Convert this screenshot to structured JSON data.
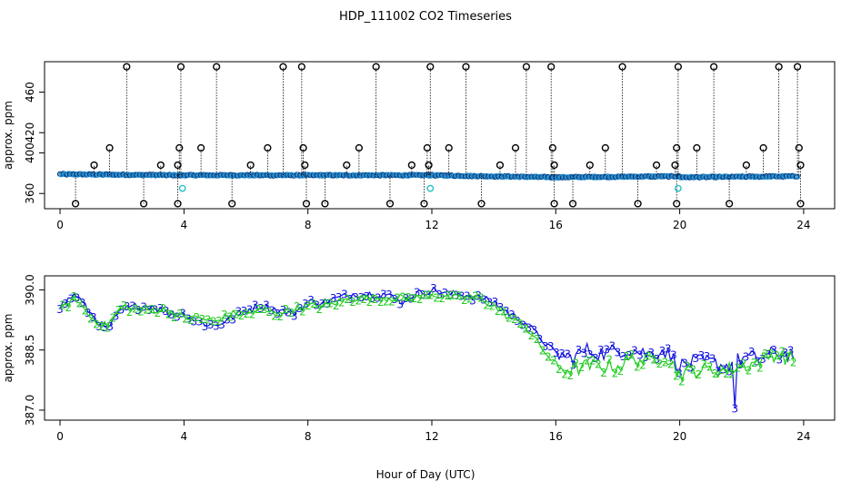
{
  "figure": {
    "title": "HDP_111002  CO2 Timeseries",
    "xlabel": "Hour of Day (UTC)"
  },
  "colors": {
    "axis": "#000000",
    "outlier_marker": "#000000",
    "main_series": "#1f8fd0",
    "main_marker_dark": "#0a2a6e",
    "flag_marker": "#22c0c8",
    "series_3": "#1010e0",
    "series_2": "#22cc22"
  },
  "chart_data": [
    {
      "type": "scatter",
      "title": "",
      "xlabel": "",
      "ylabel": "approx. ppm",
      "xlim": [
        -0.5,
        25
      ],
      "ylim": [
        345,
        490
      ],
      "xticks": [
        0,
        4,
        8,
        12,
        16,
        20,
        24
      ],
      "yticks": [
        360,
        400,
        420,
        460
      ],
      "grid": false,
      "series_breaks": [
        3.9,
        11.9,
        15.9,
        20.0
      ],
      "series": [
        {
          "x_start": 0.0,
          "x_end": 3.9,
          "y_start": 379,
          "y_end": 378
        },
        {
          "x_start": 3.9,
          "x_end": 11.9,
          "y_start": 378,
          "y_end": 378
        },
        {
          "x_start": 11.9,
          "x_end": 15.9,
          "y_start": 378,
          "y_end": 376
        },
        {
          "x_start": 15.9,
          "x_end": 20.0,
          "y_start": 376,
          "y_end": 377
        },
        {
          "x_start": 20.0,
          "x_end": 23.8,
          "y_start": 376,
          "y_end": 377
        }
      ],
      "flag_points": [
        [
          3.95,
          365
        ],
        [
          11.95,
          365
        ],
        [
          19.95,
          365
        ]
      ],
      "outliers_high": [
        2.15,
        3.9,
        5.05,
        7.2,
        7.8,
        10.2,
        11.95,
        13.1,
        15.05,
        15.85,
        18.15,
        19.95,
        21.1,
        23.2,
        23.8
      ],
      "outliers_mid": [
        1.6,
        3.85,
        4.55,
        6.7,
        7.85,
        9.65,
        11.85,
        12.55,
        14.7,
        15.9,
        17.6,
        19.9,
        20.55,
        22.7,
        23.85
      ],
      "outliers_low_point": [
        0.5,
        2.7,
        3.8,
        5.55,
        7.95,
        8.55,
        10.65,
        11.75,
        13.6,
        15.95,
        16.55,
        18.65,
        19.9,
        21.6,
        23.9
      ],
      "outliers_near": [
        1.1,
        3.25,
        3.8,
        6.15,
        7.9,
        9.25,
        11.35,
        11.9,
        14.2,
        15.95,
        17.1,
        19.25,
        19.85,
        22.15,
        23.9
      ],
      "values_high": 485,
      "values_mid": 405,
      "values_low": 350,
      "values_near": 388
    },
    {
      "type": "line",
      "title": "",
      "xlabel": "Hour of Day (UTC)",
      "ylabel": "approx. ppm",
      "xlim": [
        -0.5,
        25
      ],
      "ylim": [
        386.75,
        390.35
      ],
      "xticks": [
        0,
        4,
        8,
        12,
        16,
        20,
        24
      ],
      "yticks": [
        387.0,
        388.5,
        390.0
      ],
      "ytick_labels": [
        "387.0",
        "388.5",
        "390.0"
      ],
      "grid": false,
      "series": [
        {
          "marker": "3",
          "x": [
            0,
            0.5,
            1,
            1.5,
            2,
            2.5,
            3,
            3.5,
            4,
            4.5,
            5,
            5.5,
            6,
            6.5,
            7,
            7.5,
            8,
            8.5,
            9,
            9.5,
            10,
            10.5,
            11,
            11.5,
            12,
            12.5,
            13,
            13.5,
            14,
            14.5,
            15,
            15.5,
            16,
            16.5,
            17,
            17.5,
            18,
            18.5,
            19,
            19.5,
            20,
            20.5,
            21,
            21.5,
            22,
            22.5,
            23,
            23.5
          ],
          "y": [
            389.6,
            389.9,
            389.4,
            389.0,
            389.5,
            389.6,
            389.6,
            389.4,
            389.4,
            389.2,
            389.1,
            389.3,
            389.5,
            389.6,
            389.5,
            389.4,
            389.7,
            389.7,
            389.8,
            389.9,
            389.9,
            389.9,
            389.7,
            389.9,
            390.0,
            389.9,
            389.9,
            389.8,
            389.7,
            389.4,
            389.2,
            388.8,
            388.4,
            388.3,
            388.5,
            388.4,
            388.5,
            388.5,
            388.4,
            388.5,
            388.1,
            388.2,
            388.2,
            388.1,
            388.3,
            388.3,
            388.4,
            388.4
          ]
        },
        {
          "marker": "2",
          "x": [
            0,
            0.5,
            1,
            1.5,
            2,
            2.5,
            3,
            3.5,
            4,
            4.5,
            5,
            5.5,
            6,
            6.5,
            7,
            7.5,
            8,
            8.5,
            9,
            9.5,
            10,
            10.5,
            11,
            11.5,
            12,
            12.5,
            13,
            13.5,
            14,
            14.5,
            15,
            15.5,
            16,
            16.5,
            17,
            17.5,
            18,
            18.5,
            19,
            19.5,
            20,
            20.5,
            21,
            21.5,
            22,
            22.5,
            23,
            23.5
          ],
          "y": [
            389.5,
            389.8,
            389.3,
            389.1,
            389.6,
            389.5,
            389.5,
            389.5,
            389.3,
            389.3,
            389.2,
            389.4,
            389.4,
            389.5,
            389.4,
            389.5,
            389.6,
            389.6,
            389.7,
            389.8,
            389.8,
            389.8,
            389.8,
            389.8,
            389.9,
            389.8,
            389.8,
            389.8,
            389.6,
            389.3,
            389.1,
            388.6,
            388.1,
            388.0,
            388.1,
            388.1,
            388.1,
            388.3,
            388.2,
            388.4,
            387.9,
            388.0,
            388.0,
            388.0,
            388.1,
            388.2,
            388.4,
            388.3
          ]
        }
      ],
      "min_point": {
        "x": 21.8,
        "y": 387.05
      }
    }
  ]
}
